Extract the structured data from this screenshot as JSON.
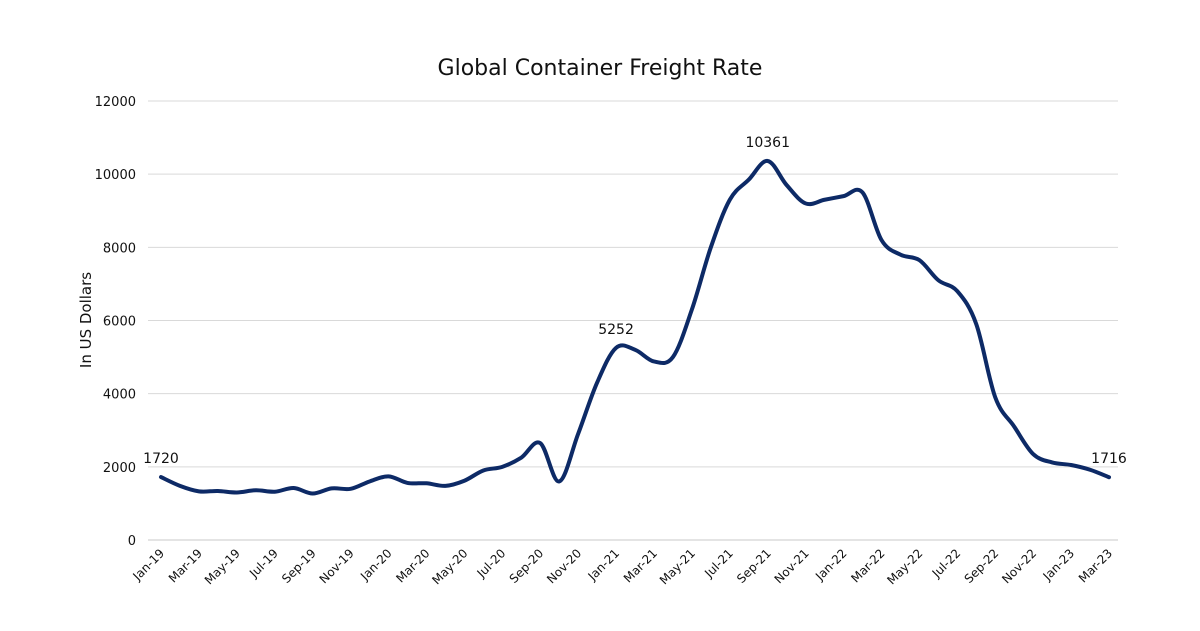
{
  "chart_data": {
    "type": "line",
    "title": "Global Container Freight Rate",
    "xlabel": "",
    "ylabel": "In US Dollars",
    "ylim": [
      0,
      12000
    ],
    "yticks": [
      0,
      2000,
      4000,
      6000,
      8000,
      10000,
      12000
    ],
    "grid": true,
    "legend": "none",
    "line_color": "#0d2a66",
    "x": [
      "Jan-19",
      "Feb-19",
      "Mar-19",
      "Apr-19",
      "May-19",
      "Jun-19",
      "Jul-19",
      "Aug-19",
      "Sep-19",
      "Oct-19",
      "Nov-19",
      "Dec-19",
      "Jan-20",
      "Feb-20",
      "Mar-20",
      "Apr-20",
      "May-20",
      "Jun-20",
      "Jul-20",
      "Aug-20",
      "Sep-20",
      "Oct-20",
      "Nov-20",
      "Dec-20",
      "Jan-21",
      "Feb-21",
      "Mar-21",
      "Apr-21",
      "May-21",
      "Jun-21",
      "Jul-21",
      "Aug-21",
      "Sep-21",
      "Oct-21",
      "Nov-21",
      "Dec-21",
      "Jan-22",
      "Feb-22",
      "Mar-22",
      "Apr-22",
      "May-22",
      "Jun-22",
      "Jul-22",
      "Aug-22",
      "Sep-22",
      "Oct-22",
      "Nov-22",
      "Dec-22",
      "Jan-23",
      "Feb-23",
      "Mar-23"
    ],
    "xtick_labels": [
      "Jan-19",
      "Mar-19",
      "May-19",
      "Jul-19",
      "Sep-19",
      "Nov-19",
      "Jan-20",
      "Mar-20",
      "May-20",
      "Jul-20",
      "Sep-20",
      "Nov-20",
      "Jan-21",
      "Mar-21",
      "May-21",
      "Jul-21",
      "Sep-21",
      "Nov-21",
      "Jan-22",
      "Mar-22",
      "May-22",
      "Jul-22",
      "Sep-22",
      "Nov-22",
      "Jan-23",
      "Mar-23"
    ],
    "series": [
      {
        "values": [
          1720,
          1480,
          1330,
          1340,
          1300,
          1360,
          1320,
          1420,
          1270,
          1410,
          1400,
          1600,
          1740,
          1560,
          1550,
          1480,
          1620,
          1900,
          2000,
          2250,
          2650,
          1600,
          2900,
          4300,
          5252,
          5200,
          4880,
          5000,
          6300,
          8000,
          9300,
          9850,
          10361,
          9700,
          9200,
          9300,
          9400,
          9500,
          8200,
          7800,
          7650,
          7100,
          6800,
          5900,
          3900,
          3100,
          2350,
          2120,
          2050,
          1920,
          1716
        ]
      }
    ],
    "annotations": [
      {
        "x": "Jan-19",
        "y": 1720,
        "text": "1720"
      },
      {
        "x": "Jan-21",
        "y": 5252,
        "text": "5252"
      },
      {
        "x": "Sep-21",
        "y": 10361,
        "text": "10361"
      },
      {
        "x": "Mar-23",
        "y": 1716,
        "text": "1716"
      }
    ]
  }
}
